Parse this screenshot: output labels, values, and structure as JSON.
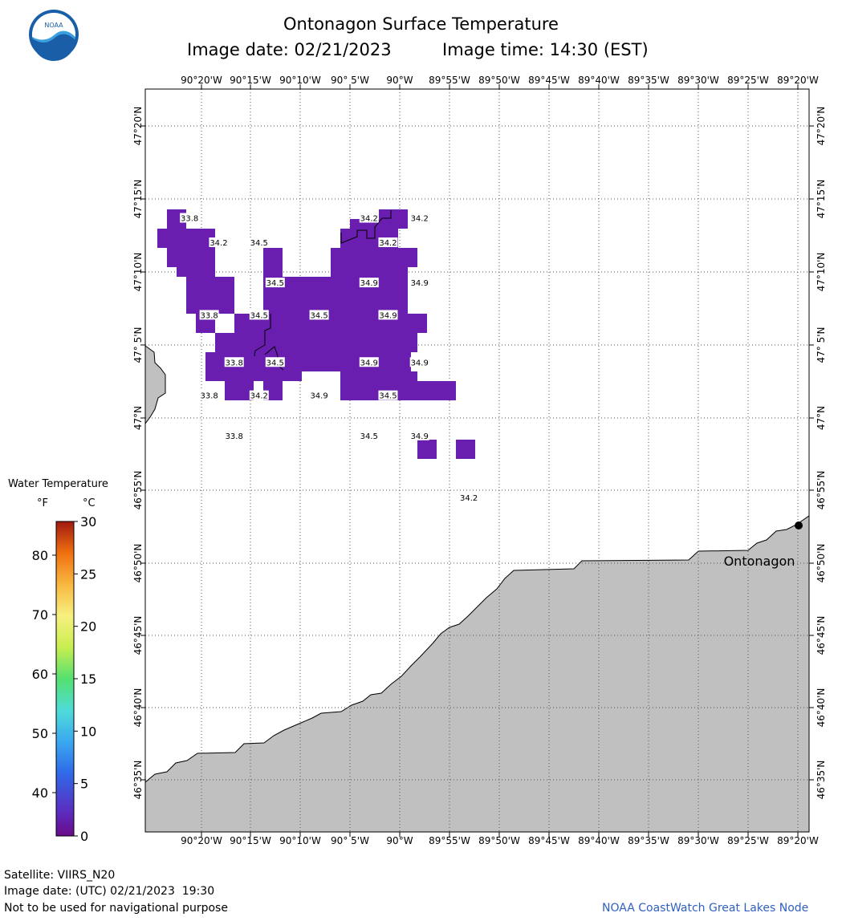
{
  "header": {
    "title": "Ontonagon Surface Temperature",
    "image_date": "Image date: 02/21/2023",
    "image_time": "Image time: 14:30 (EST)"
  },
  "logo": {
    "text": "NOAA"
  },
  "map": {
    "lon_labels": [
      "90°20'W",
      "90°15'W",
      "90°10'W",
      "90° 5'W",
      "90°W",
      "89°55'W",
      "89°50'W",
      "89°45'W",
      "89°40'W",
      "89°35'W",
      "89°30'W",
      "89°25'W",
      "89°20'W"
    ],
    "lat_labels": [
      "47°20'N",
      "47°15'N",
      "47°10'N",
      "47° 5'N",
      "47°N",
      "46°55'N",
      "46°50'N",
      "46°45'N",
      "46°40'N",
      "46°35'N"
    ],
    "place_label": "Ontonagon",
    "land_color": "#c0c0c0",
    "water_color": "#ffffff",
    "pixel_color_main": "#6a1eb0",
    "temp_labels": [
      {
        "v": "33.8",
        "lon": -90.354,
        "lat": 47.229
      },
      {
        "v": "34.2",
        "lon": -90.305,
        "lat": 47.201
      },
      {
        "v": "34.5",
        "lon": -90.237,
        "lat": 47.201
      },
      {
        "v": "34.2",
        "lon": -90.052,
        "lat": 47.229
      },
      {
        "v": "34.2",
        "lon": -89.967,
        "lat": 47.229
      },
      {
        "v": "34.2",
        "lon": -90.02,
        "lat": 47.201
      },
      {
        "v": "34.5",
        "lon": -90.21,
        "lat": 47.155
      },
      {
        "v": "34.9",
        "lon": -90.052,
        "lat": 47.155
      },
      {
        "v": "34.9",
        "lon": -89.967,
        "lat": 47.155
      },
      {
        "v": "33.8",
        "lon": -90.321,
        "lat": 47.118
      },
      {
        "v": "34.5",
        "lon": -90.237,
        "lat": 47.118
      },
      {
        "v": "34.5",
        "lon": -90.136,
        "lat": 47.118
      },
      {
        "v": "34.9",
        "lon": -90.02,
        "lat": 47.118
      },
      {
        "v": "33.8",
        "lon": -90.279,
        "lat": 47.064
      },
      {
        "v": "34.5",
        "lon": -90.21,
        "lat": 47.064
      },
      {
        "v": "34.9",
        "lon": -90.052,
        "lat": 47.064
      },
      {
        "v": "34.9",
        "lon": -89.967,
        "lat": 47.064
      },
      {
        "v": "33.8",
        "lon": -90.321,
        "lat": 47.026
      },
      {
        "v": "34.2",
        "lon": -90.237,
        "lat": 47.026
      },
      {
        "v": "34.9",
        "lon": -90.136,
        "lat": 47.026
      },
      {
        "v": "34.5",
        "lon": -90.02,
        "lat": 47.026
      },
      {
        "v": "33.8",
        "lon": -90.279,
        "lat": 46.98
      },
      {
        "v": "34.5",
        "lon": -90.052,
        "lat": 46.98
      },
      {
        "v": "34.9",
        "lon": -89.967,
        "lat": 46.98
      },
      {
        "v": "34.2",
        "lon": -89.884,
        "lat": 46.909
      }
    ]
  },
  "legend": {
    "title": "Water Temperature",
    "unit_f": "°F",
    "unit_c": "°C",
    "f_ticks": [
      "80",
      "70",
      "60",
      "50",
      "40"
    ],
    "c_ticks": [
      "30",
      "25",
      "20",
      "15",
      "10",
      "5",
      "0"
    ]
  },
  "footer": {
    "satellite": "Satellite: VIIRS_N20",
    "utc_date": "Image date: (UTC) 02/21/2023  19:30",
    "disclaimer": "Not to be used for navigational purpose",
    "credit": "NOAA CoastWatch Great Lakes Node"
  }
}
